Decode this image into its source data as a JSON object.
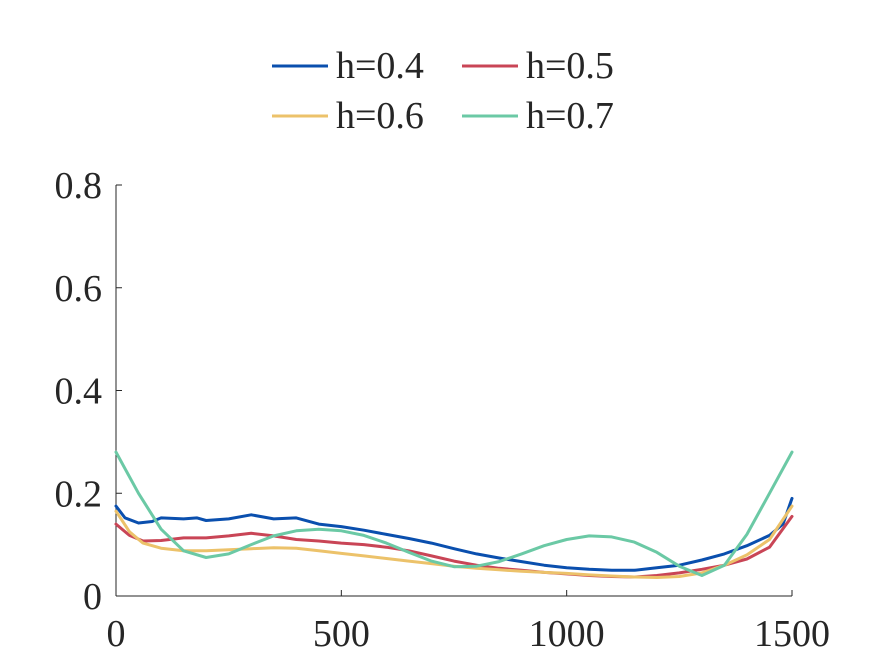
{
  "chart_data": {
    "type": "line",
    "title": "",
    "xlabel": "",
    "ylabel": "",
    "xlim": [
      0,
      1500
    ],
    "ylim": [
      0,
      0.8
    ],
    "x_ticks": [
      0,
      500,
      1000,
      1500
    ],
    "x_tick_labels": [
      "0",
      "500",
      "1000",
      "1500"
    ],
    "y_ticks": [
      0,
      0.2,
      0.4,
      0.6,
      0.8
    ],
    "y_tick_labels": [
      "0",
      "0.2",
      "0.4",
      "0.6",
      "0.8"
    ],
    "grid": false,
    "legend": {
      "placement": "top-center-outside",
      "columns": 2
    },
    "series": [
      {
        "name": "h=0.4",
        "color": "#0a4fae",
        "points": [
          [
            0,
            0.175
          ],
          [
            20,
            0.152
          ],
          [
            50,
            0.142
          ],
          [
            80,
            0.145
          ],
          [
            100,
            0.152
          ],
          [
            150,
            0.15
          ],
          [
            180,
            0.152
          ],
          [
            200,
            0.147
          ],
          [
            250,
            0.15
          ],
          [
            300,
            0.158
          ],
          [
            350,
            0.15
          ],
          [
            400,
            0.152
          ],
          [
            450,
            0.14
          ],
          [
            500,
            0.135
          ],
          [
            550,
            0.128
          ],
          [
            600,
            0.12
          ],
          [
            650,
            0.112
          ],
          [
            700,
            0.103
          ],
          [
            750,
            0.092
          ],
          [
            800,
            0.082
          ],
          [
            850,
            0.074
          ],
          [
            900,
            0.067
          ],
          [
            950,
            0.06
          ],
          [
            1000,
            0.055
          ],
          [
            1050,
            0.052
          ],
          [
            1100,
            0.05
          ],
          [
            1150,
            0.05
          ],
          [
            1200,
            0.055
          ],
          [
            1250,
            0.06
          ],
          [
            1300,
            0.07
          ],
          [
            1350,
            0.082
          ],
          [
            1400,
            0.098
          ],
          [
            1450,
            0.118
          ],
          [
            1480,
            0.14
          ],
          [
            1500,
            0.19
          ]
        ]
      },
      {
        "name": "h=0.5",
        "color": "#c94556",
        "points": [
          [
            0,
            0.14
          ],
          [
            30,
            0.118
          ],
          [
            60,
            0.107
          ],
          [
            100,
            0.108
          ],
          [
            150,
            0.113
          ],
          [
            200,
            0.113
          ],
          [
            250,
            0.117
          ],
          [
            300,
            0.122
          ],
          [
            350,
            0.117
          ],
          [
            400,
            0.11
          ],
          [
            450,
            0.107
          ],
          [
            500,
            0.103
          ],
          [
            550,
            0.1
          ],
          [
            600,
            0.095
          ],
          [
            650,
            0.088
          ],
          [
            700,
            0.078
          ],
          [
            750,
            0.068
          ],
          [
            800,
            0.06
          ],
          [
            850,
            0.054
          ],
          [
            900,
            0.05
          ],
          [
            950,
            0.046
          ],
          [
            1000,
            0.043
          ],
          [
            1050,
            0.04
          ],
          [
            1100,
            0.038
          ],
          [
            1150,
            0.037
          ],
          [
            1200,
            0.04
          ],
          [
            1250,
            0.045
          ],
          [
            1300,
            0.052
          ],
          [
            1350,
            0.06
          ],
          [
            1400,
            0.072
          ],
          [
            1450,
            0.095
          ],
          [
            1500,
            0.155
          ]
        ]
      },
      {
        "name": "h=0.6",
        "color": "#ecc26a",
        "points": [
          [
            0,
            0.165
          ],
          [
            30,
            0.125
          ],
          [
            60,
            0.103
          ],
          [
            100,
            0.093
          ],
          [
            150,
            0.088
          ],
          [
            200,
            0.088
          ],
          [
            250,
            0.09
          ],
          [
            300,
            0.092
          ],
          [
            350,
            0.094
          ],
          [
            400,
            0.093
          ],
          [
            450,
            0.088
          ],
          [
            500,
            0.083
          ],
          [
            550,
            0.078
          ],
          [
            600,
            0.073
          ],
          [
            650,
            0.068
          ],
          [
            700,
            0.063
          ],
          [
            750,
            0.058
          ],
          [
            800,
            0.054
          ],
          [
            850,
            0.051
          ],
          [
            900,
            0.048
          ],
          [
            950,
            0.046
          ],
          [
            1000,
            0.044
          ],
          [
            1050,
            0.041
          ],
          [
            1100,
            0.039
          ],
          [
            1150,
            0.037
          ],
          [
            1200,
            0.036
          ],
          [
            1250,
            0.038
          ],
          [
            1300,
            0.045
          ],
          [
            1350,
            0.06
          ],
          [
            1400,
            0.08
          ],
          [
            1450,
            0.11
          ],
          [
            1500,
            0.175
          ]
        ]
      },
      {
        "name": "h=0.7",
        "color": "#6bc9a5",
        "points": [
          [
            0,
            0.28
          ],
          [
            50,
            0.2
          ],
          [
            100,
            0.13
          ],
          [
            150,
            0.088
          ],
          [
            200,
            0.075
          ],
          [
            250,
            0.082
          ],
          [
            300,
            0.1
          ],
          [
            350,
            0.117
          ],
          [
            400,
            0.127
          ],
          [
            450,
            0.13
          ],
          [
            500,
            0.127
          ],
          [
            550,
            0.118
          ],
          [
            600,
            0.103
          ],
          [
            650,
            0.085
          ],
          [
            700,
            0.068
          ],
          [
            750,
            0.057
          ],
          [
            800,
            0.058
          ],
          [
            850,
            0.067
          ],
          [
            900,
            0.082
          ],
          [
            950,
            0.098
          ],
          [
            1000,
            0.11
          ],
          [
            1050,
            0.117
          ],
          [
            1100,
            0.115
          ],
          [
            1150,
            0.105
          ],
          [
            1200,
            0.085
          ],
          [
            1250,
            0.058
          ],
          [
            1300,
            0.04
          ],
          [
            1350,
            0.06
          ],
          [
            1400,
            0.12
          ],
          [
            1450,
            0.2
          ],
          [
            1500,
            0.28
          ]
        ]
      }
    ]
  }
}
